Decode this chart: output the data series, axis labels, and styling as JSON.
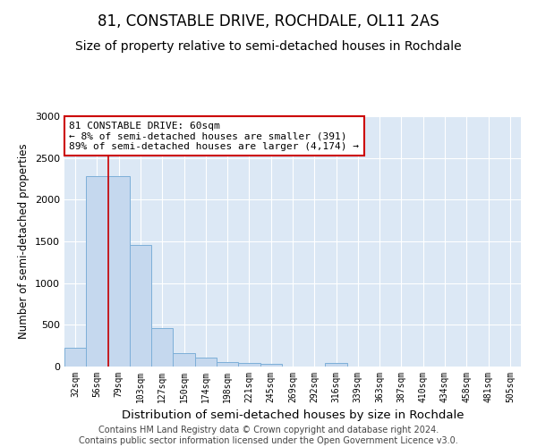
{
  "title": "81, CONSTABLE DRIVE, ROCHDALE, OL11 2AS",
  "subtitle": "Size of property relative to semi-detached houses in Rochdale",
  "xlabel": "Distribution of semi-detached houses by size in Rochdale",
  "ylabel": "Number of semi-detached properties",
  "categories": [
    "32sqm",
    "56sqm",
    "79sqm",
    "103sqm",
    "127sqm",
    "150sqm",
    "174sqm",
    "198sqm",
    "221sqm",
    "245sqm",
    "269sqm",
    "292sqm",
    "316sqm",
    "339sqm",
    "363sqm",
    "387sqm",
    "410sqm",
    "434sqm",
    "458sqm",
    "481sqm",
    "505sqm"
  ],
  "values": [
    220,
    2280,
    2280,
    1460,
    460,
    160,
    105,
    55,
    40,
    35,
    0,
    0,
    40,
    0,
    0,
    0,
    0,
    0,
    0,
    0,
    0
  ],
  "bar_color": "#c5d8ee",
  "bar_edge_color": "#7dafd8",
  "property_line_x": 1.5,
  "annotation_text": "81 CONSTABLE DRIVE: 60sqm\n← 8% of semi-detached houses are smaller (391)\n89% of semi-detached houses are larger (4,174) →",
  "annotation_box_color": "white",
  "annotation_box_edge_color": "#cc0000",
  "red_line_color": "#cc0000",
  "ylim": [
    0,
    3000
  ],
  "yticks": [
    0,
    500,
    1000,
    1500,
    2000,
    2500,
    3000
  ],
  "background_color": "#dce8f5",
  "grid_color": "#c0cfe0",
  "footer_text": "Contains HM Land Registry data © Crown copyright and database right 2024.\nContains public sector information licensed under the Open Government Licence v3.0.",
  "title_fontsize": 12,
  "subtitle_fontsize": 10,
  "xlabel_fontsize": 9.5,
  "ylabel_fontsize": 8.5,
  "annotation_fontsize": 8,
  "footer_fontsize": 7
}
